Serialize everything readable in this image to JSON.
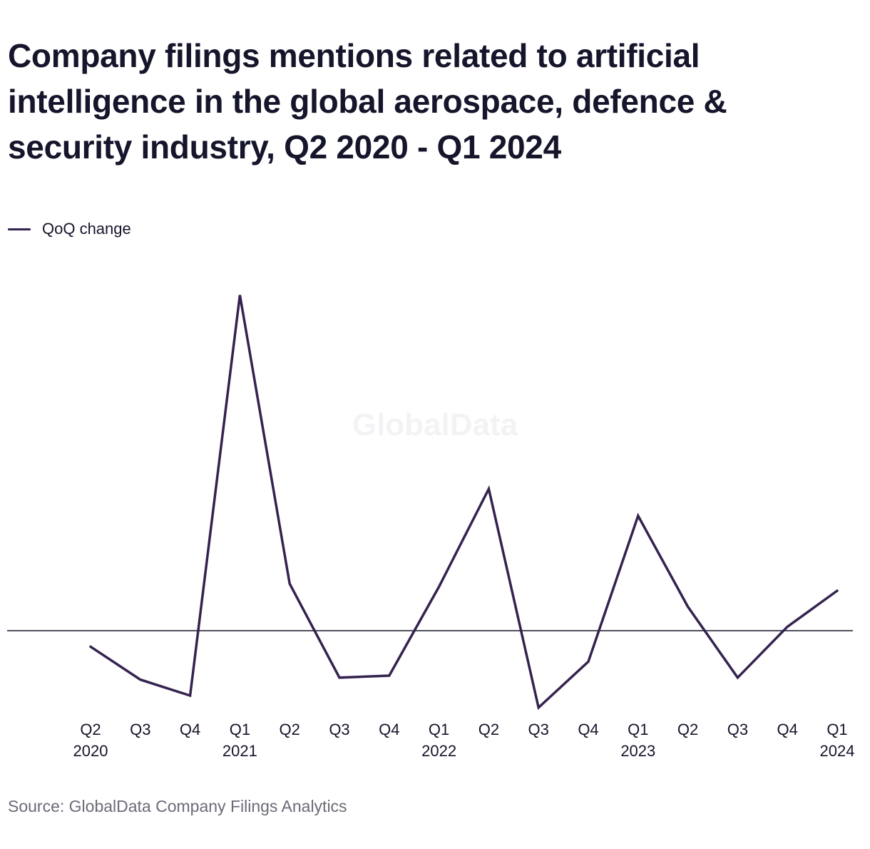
{
  "title": "Company filings mentions related to artificial intelligence in the global aerospace, defence & security industry, Q2 2020 - Q1 2024",
  "source": "Source: GlobalData Company Filings Analytics",
  "watermark": "GlobalData",
  "colors": {
    "series": "#35234f",
    "zero_line": "#15152b",
    "title": "#15152b",
    "source": "#6b6b78"
  },
  "chart_data": {
    "type": "line",
    "title": "Company filings mentions related to artificial intelligence in the global aerospace, defence & security industry, Q2 2020 - Q1 2024",
    "categories": [
      [
        "Q2",
        "2020"
      ],
      [
        "Q3",
        ""
      ],
      [
        "Q4",
        ""
      ],
      [
        "Q1",
        "2021"
      ],
      [
        "Q2",
        ""
      ],
      [
        "Q3",
        ""
      ],
      [
        "Q4",
        ""
      ],
      [
        "Q1",
        "2022"
      ],
      [
        "Q2",
        ""
      ],
      [
        "Q3",
        ""
      ],
      [
        "Q4",
        ""
      ],
      [
        "Q1",
        "2023"
      ],
      [
        "Q2",
        ""
      ],
      [
        "Q3",
        ""
      ],
      [
        "Q4",
        ""
      ],
      [
        "Q1",
        "2024"
      ]
    ],
    "series": [
      {
        "name": "QoQ change",
        "values": [
          -0.08,
          -0.245,
          -0.325,
          1.68,
          0.235,
          -0.235,
          -0.225,
          0.22,
          0.71,
          -0.385,
          -0.155,
          0.575,
          0.12,
          -0.235,
          0.02,
          0.2
        ]
      }
    ],
    "ylim": [
      -0.45,
      1.8
    ],
    "zero_line": true,
    "grid": false,
    "legend": "top-left",
    "xlabel": "",
    "ylabel": ""
  }
}
